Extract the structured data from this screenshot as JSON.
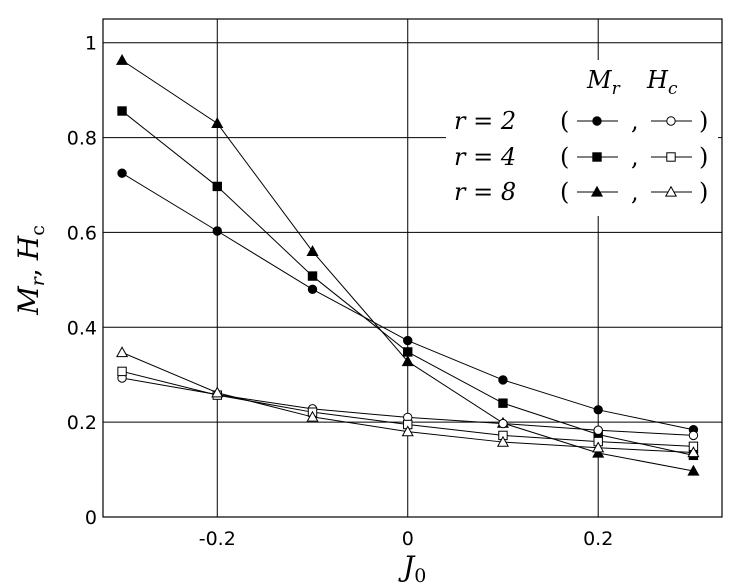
{
  "chart_data": {
    "type": "line",
    "x": [
      -0.3,
      -0.2,
      -0.1,
      0,
      0.1,
      0.2,
      0.3
    ],
    "xlim": [
      -0.32,
      0.33
    ],
    "ylim": [
      0,
      1.05
    ],
    "x_ticks": [
      "-0.2",
      "0",
      "0.2"
    ],
    "y_ticks": [
      "0",
      "0.2",
      "0.4",
      "0.6",
      "0.8",
      "1"
    ],
    "xlabel": {
      "base": "J",
      "sub": "0"
    },
    "ylabel": {
      "a": "M",
      "a_sub": "r",
      "sep": ",",
      "b": "H",
      "b_sub": "c"
    },
    "grid": true,
    "legend": {
      "placement": "top-right",
      "header_mr": {
        "base": "M",
        "sub": "r"
      },
      "header_hc": {
        "base": "H",
        "sub": "c"
      },
      "rows": [
        {
          "label": "r = 2",
          "marker": "circle"
        },
        {
          "label": "r = 4",
          "marker": "square"
        },
        {
          "label": "r = 8",
          "marker": "triangle"
        }
      ],
      "paren_open": "(",
      "comma": ",",
      "paren_close": ")"
    },
    "series": [
      {
        "quantity": "Mr",
        "r": 2,
        "marker": "circle",
        "filled": true,
        "values": [
          0.725,
          0.603,
          0.48,
          0.372,
          0.289,
          0.226,
          0.184
        ]
      },
      {
        "quantity": "Mr",
        "r": 4,
        "marker": "square",
        "filled": true,
        "values": [
          0.856,
          0.697,
          0.508,
          0.348,
          0.24,
          0.174,
          0.13
        ]
      },
      {
        "quantity": "Mr",
        "r": 8,
        "marker": "triangle",
        "filled": true,
        "values": [
          0.963,
          0.83,
          0.56,
          0.328,
          0.198,
          0.135,
          0.097
        ]
      },
      {
        "quantity": "Hc",
        "r": 2,
        "marker": "circle",
        "filled": false,
        "values": [
          0.293,
          0.258,
          0.228,
          0.21,
          0.197,
          0.183,
          0.172
        ]
      },
      {
        "quantity": "Hc",
        "r": 4,
        "marker": "square",
        "filled": false,
        "values": [
          0.307,
          0.257,
          0.221,
          0.195,
          0.172,
          0.159,
          0.149
        ]
      },
      {
        "quantity": "Hc",
        "r": 8,
        "marker": "triangle",
        "filled": false,
        "values": [
          0.347,
          0.262,
          0.211,
          0.18,
          0.158,
          0.146,
          0.136
        ]
      }
    ]
  }
}
